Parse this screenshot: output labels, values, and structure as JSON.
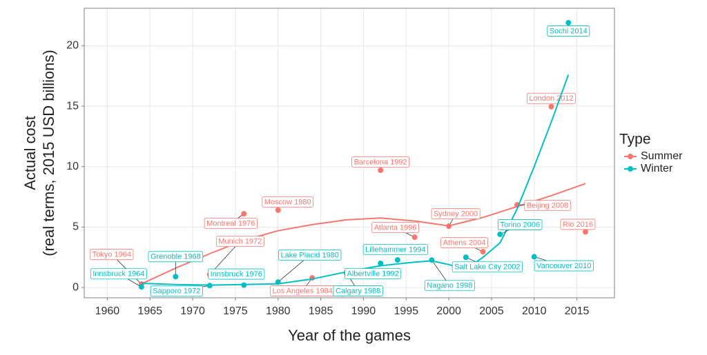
{
  "chart_data": {
    "type": "scatter",
    "x_label": "Year of the games",
    "y_label": [
      "Actual cost",
      "(real terms, 2015 USD billions)"
    ],
    "legend_title": "Type",
    "xlim": [
      1957.3,
      2019.4
    ],
    "ylim": [
      -0.85,
      23.1
    ],
    "xticks": [
      1960,
      1965,
      1970,
      1975,
      1980,
      1985,
      1990,
      1995,
      2000,
      2005,
      2010,
      2015
    ],
    "yticks": [
      0,
      5,
      10,
      15,
      20
    ],
    "grid": true,
    "series": [
      {
        "name": "Summer",
        "color": "#F8766D",
        "labels": [
          "Tokyo 1964",
          "Munich 1972",
          "Montreal 1976",
          "Moscow 1980",
          "Los Angeles 1984",
          "Barcelona 1992",
          "Atlanta 1996",
          "Sydney 2000",
          "Athens 2004",
          "Beijing 2008",
          "London 2012",
          "Rio 2016"
        ],
        "x": [
          1964,
          1972,
          1976,
          1980,
          1984,
          1992,
          1996,
          2000,
          2004,
          2008,
          2012,
          2016
        ],
        "values": [
          0.28,
          1.08,
          6.1,
          6.4,
          0.8,
          9.7,
          4.16,
          5.07,
          2.96,
          6.84,
          14.96,
          4.6
        ],
        "smooth_x": [
          1964,
          1968,
          1972,
          1976,
          1980,
          1984,
          1988,
          1992,
          1996,
          2000,
          2004,
          2008,
          2012,
          2016
        ],
        "smooth_y": [
          0.3,
          1.6,
          2.8,
          3.9,
          4.7,
          5.2,
          5.6,
          5.75,
          5.5,
          5.1,
          5.8,
          6.7,
          7.6,
          8.6
        ]
      },
      {
        "name": "Winter",
        "color": "#00BFC4",
        "labels": [
          "Innsbruck 1964",
          "Grenoble 1968",
          "Sapporo 1972",
          "Innsbruck 1976",
          "Lake Placid 1980",
          "Calgary 1988",
          "Albertville 1992",
          "Lillehammer 1994",
          "Nagano 1998",
          "Salt Lake City 2002",
          "Torino 2006",
          "Vancouver 2010",
          "Sochi 2014"
        ],
        "x": [
          1964,
          1968,
          1972,
          1976,
          1980,
          1988,
          1992,
          1994,
          1998,
          2002,
          2006,
          2010,
          2014
        ],
        "values": [
          0.05,
          0.9,
          0.16,
          0.2,
          0.45,
          1.2,
          2.0,
          2.28,
          2.27,
          2.5,
          4.4,
          2.54,
          21.9
        ],
        "smooth_x": [
          1964,
          1968,
          1972,
          1976,
          1980,
          1984,
          1988,
          1992,
          1996,
          1998,
          2000,
          2002,
          2004,
          2006,
          2008,
          2010,
          2012,
          2014
        ],
        "smooth_y": [
          0.35,
          0.25,
          0.2,
          0.25,
          0.3,
          0.7,
          1.3,
          1.8,
          2.1,
          2.2,
          1.9,
          1.5,
          2.5,
          3.7,
          6.5,
          10,
          13.7,
          17.6
        ]
      }
    ]
  }
}
